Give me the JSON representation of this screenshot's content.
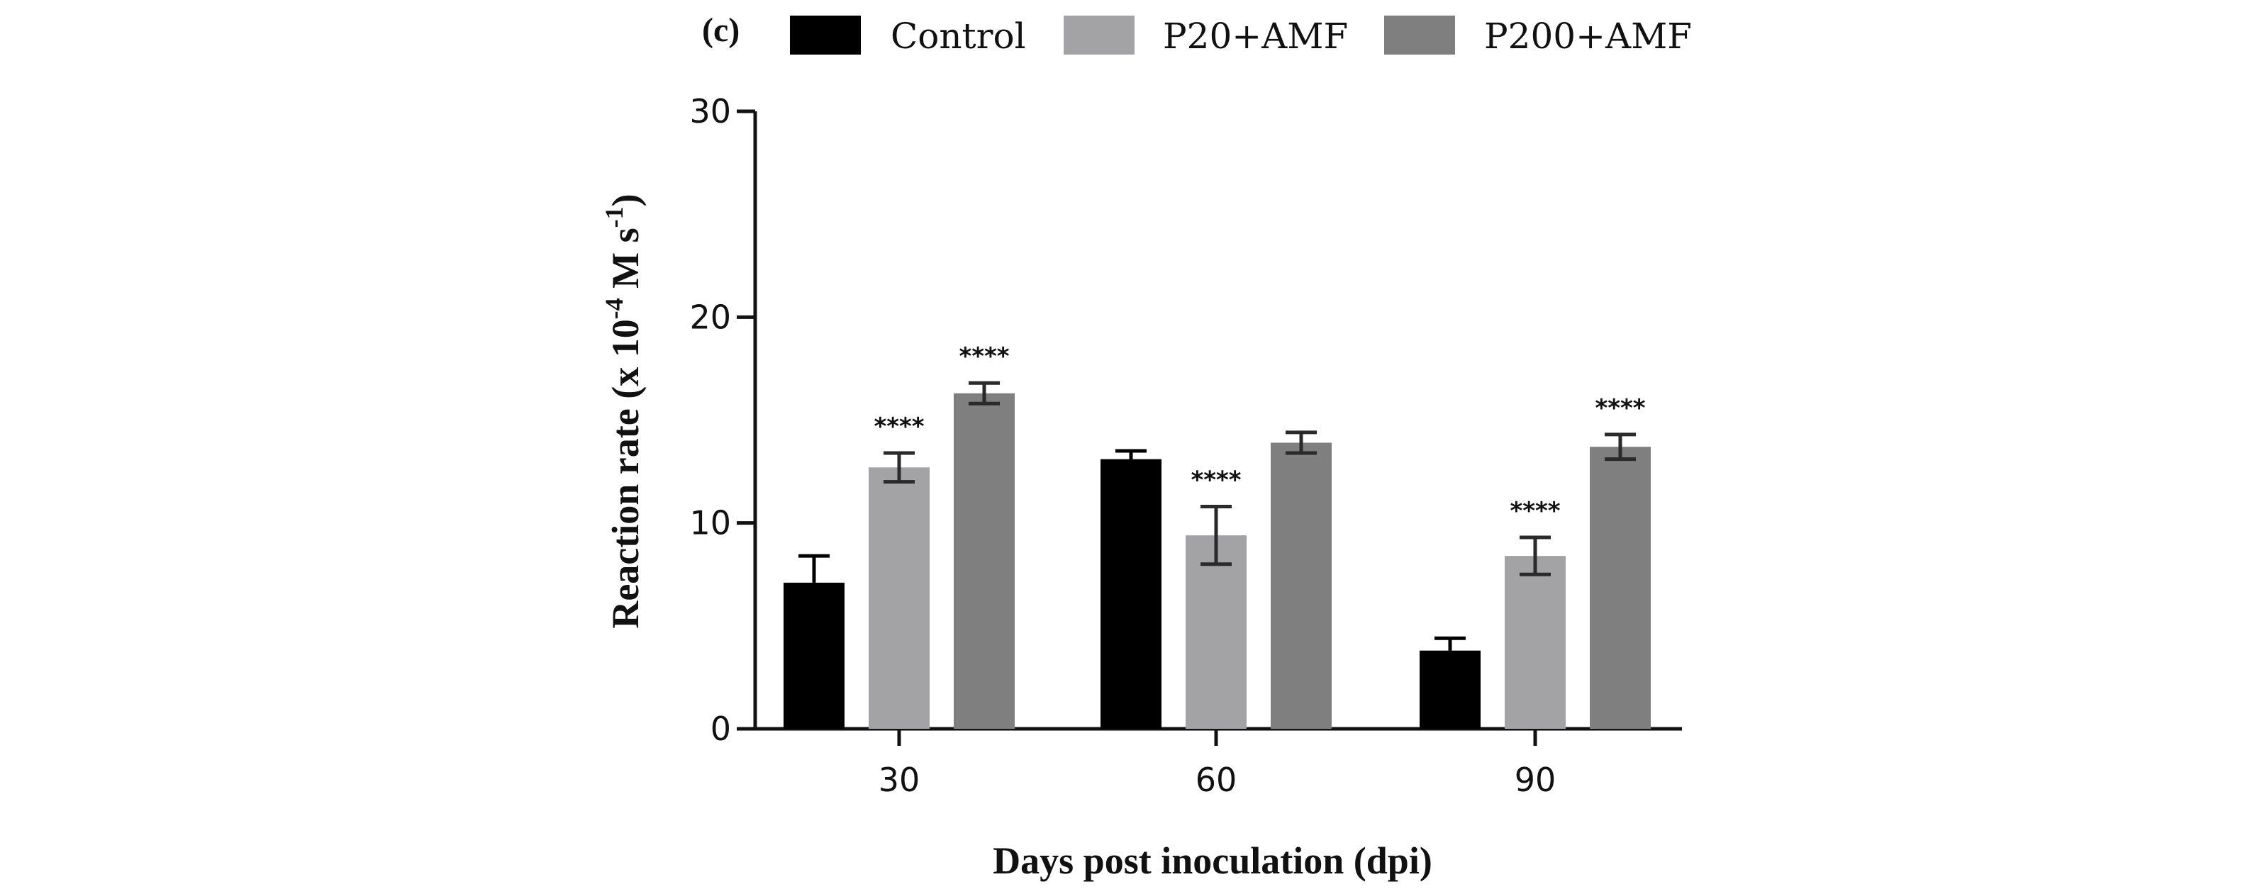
{
  "panel_label": "(c)",
  "chart_data": {
    "type": "bar",
    "title": "",
    "xlabel": "Days post inoculation (dpi)",
    "ylabel": {
      "prefix": "Reaction rate (x 10",
      "exp1": "-4",
      "middle": " M s",
      "exp2": "-1",
      "suffix": ")"
    },
    "categories": [
      "30",
      "60",
      "90"
    ],
    "ylim": [
      0,
      30
    ],
    "yticks": [
      "0",
      "10",
      "20",
      "30"
    ],
    "grid": false,
    "legend_position": "top",
    "series": [
      {
        "name": "Control",
        "color": "#000000",
        "values": [
          7.1,
          13.1,
          3.8
        ],
        "errors": [
          1.3,
          0.4,
          0.6
        ],
        "error_style": "up",
        "significance": [
          "",
          "",
          ""
        ]
      },
      {
        "name": "P20+AMF",
        "color": "#a3a3a5",
        "values": [
          12.7,
          9.4,
          8.4
        ],
        "errors": [
          0.7,
          1.4,
          0.9
        ],
        "error_style": "both",
        "significance": [
          "****",
          "****",
          "****"
        ]
      },
      {
        "name": "P200+AMF",
        "color": "#7f7f7f",
        "values": [
          16.3,
          13.9,
          13.7
        ],
        "errors": [
          0.5,
          0.5,
          0.6
        ],
        "error_style": "both",
        "significance": [
          "****",
          "",
          "****"
        ]
      }
    ]
  }
}
